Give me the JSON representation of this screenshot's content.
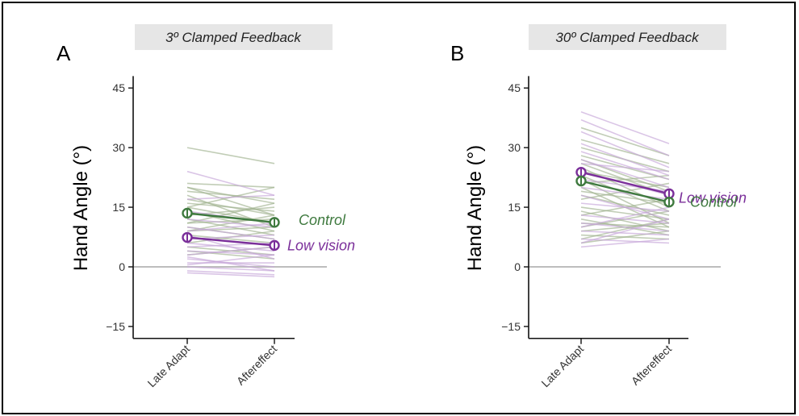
{
  "colors": {
    "control": "#3f7a3f",
    "low_vision": "#7b2f9a",
    "control_faint": "#9fb28f",
    "low_vision_faint": "#c6a6d8",
    "zero_line": "#bdbdbd"
  },
  "chart_data": [
    {
      "type": "line",
      "panel": "A",
      "title": "3º Clamped Feedback",
      "ylabel": "Hand Angle (°)",
      "xlabel": "",
      "categories": [
        "Late Adapt",
        "Aftereffect"
      ],
      "ylim": [
        -18,
        48
      ],
      "yticks": [
        -15,
        0,
        15,
        30,
        45
      ],
      "yticklabels": [
        "−15",
        "0",
        "15",
        "30",
        "45"
      ],
      "series": [
        {
          "name": "Control",
          "color": "control",
          "values": [
            13.5,
            11.2
          ]
        },
        {
          "name": "Low vision",
          "color": "low_vision",
          "values": [
            7.4,
            5.4
          ]
        }
      ],
      "individuals": {
        "control": [
          [
            30,
            26
          ],
          [
            21,
            20
          ],
          [
            20,
            13
          ],
          [
            19,
            17
          ],
          [
            18,
            10
          ],
          [
            17,
            13
          ],
          [
            16,
            14
          ],
          [
            15,
            11
          ],
          [
            14,
            9
          ],
          [
            13,
            15
          ],
          [
            12,
            8
          ],
          [
            11,
            12
          ],
          [
            10,
            7
          ],
          [
            9,
            10
          ],
          [
            8,
            6
          ],
          [
            6,
            9
          ],
          [
            5,
            3
          ],
          [
            4,
            2
          ],
          [
            3,
            5
          ],
          [
            20,
            16
          ],
          [
            15,
            20
          ],
          [
            11,
            16
          ],
          [
            9,
            13
          ]
        ],
        "low_vision": [
          [
            24,
            18
          ],
          [
            17,
            18
          ],
          [
            14,
            11
          ],
          [
            12,
            10
          ],
          [
            10,
            7
          ],
          [
            9,
            11
          ],
          [
            8,
            2
          ],
          [
            7,
            8
          ],
          [
            6,
            4
          ],
          [
            5,
            6
          ],
          [
            4,
            3
          ],
          [
            3,
            5
          ],
          [
            2,
            0
          ],
          [
            1,
            1
          ],
          [
            0,
            -1
          ],
          [
            -1,
            -2
          ],
          [
            -1.5,
            -2.5
          ],
          [
            0.5,
            3
          ],
          [
            2.5,
            -1
          ]
        ]
      }
    },
    {
      "type": "line",
      "panel": "B",
      "title": "30º Clamped Feedback",
      "ylabel": "Hand Angle (°)",
      "xlabel": "",
      "categories": [
        "Late Adapt",
        "Aftereffect"
      ],
      "ylim": [
        -18,
        48
      ],
      "yticks": [
        -15,
        0,
        15,
        30,
        45
      ],
      "yticklabels": [
        "−15",
        "0",
        "15",
        "30",
        "45"
      ],
      "series": [
        {
          "name": "Low vision",
          "color": "low_vision",
          "values": [
            23.8,
            18.4
          ]
        },
        {
          "name": "Control",
          "color": "control",
          "values": [
            21.6,
            16.3
          ]
        }
      ],
      "individuals": {
        "control": [
          [
            35,
            28
          ],
          [
            32,
            26
          ],
          [
            30,
            24
          ],
          [
            28,
            22
          ],
          [
            27,
            19
          ],
          [
            26,
            18
          ],
          [
            25,
            15
          ],
          [
            24,
            20
          ],
          [
            23,
            14
          ],
          [
            22,
            11
          ],
          [
            21,
            23
          ],
          [
            20,
            10
          ],
          [
            19,
            16
          ],
          [
            18,
            13
          ],
          [
            17,
            21
          ],
          [
            15,
            12
          ],
          [
            14,
            9
          ],
          [
            13,
            17
          ],
          [
            12,
            8
          ],
          [
            11,
            10
          ],
          [
            10,
            14
          ],
          [
            9,
            11
          ],
          [
            8,
            7
          ],
          [
            7,
            12
          ],
          [
            6,
            9
          ]
        ],
        "low_vision": [
          [
            39,
            31
          ],
          [
            37,
            28
          ],
          [
            34,
            25
          ],
          [
            31,
            23
          ],
          [
            29,
            22
          ],
          [
            27,
            20
          ],
          [
            26,
            24
          ],
          [
            24,
            18
          ],
          [
            22,
            19
          ],
          [
            20,
            17
          ],
          [
            18,
            12
          ],
          [
            16,
            14
          ],
          [
            13,
            11
          ],
          [
            11,
            9
          ],
          [
            9,
            8
          ],
          [
            7,
            6
          ],
          [
            5,
            7
          ],
          [
            6,
            12
          ],
          [
            10,
            15
          ]
        ]
      }
    }
  ]
}
